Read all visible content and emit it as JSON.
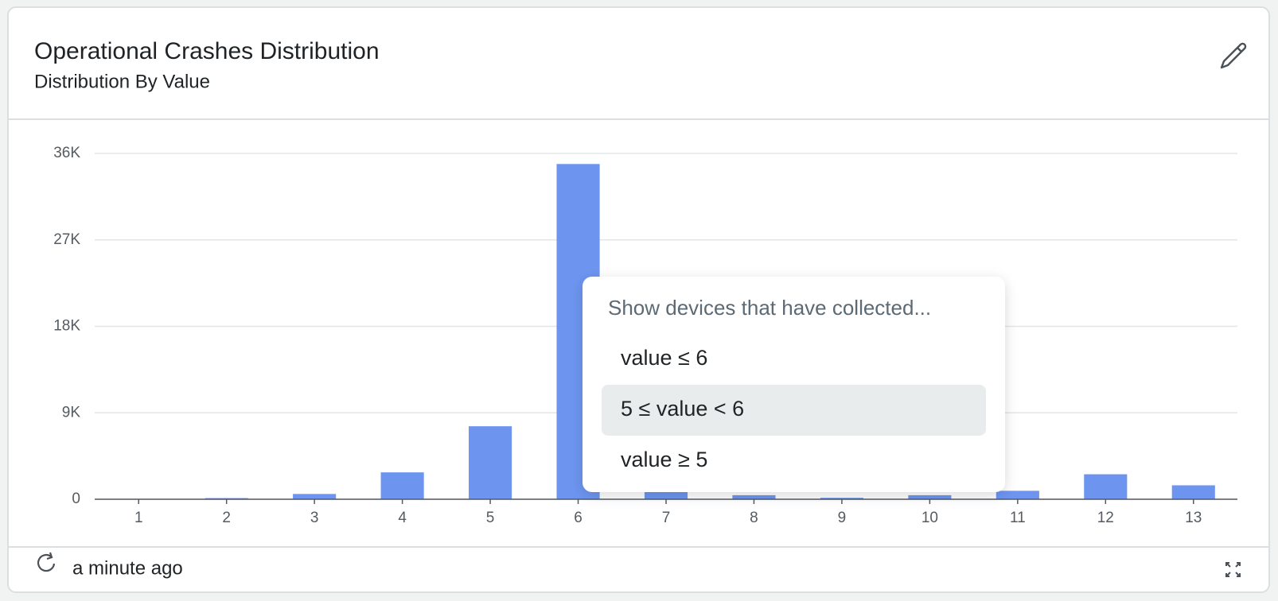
{
  "header": {
    "title": "Operational Crashes Distribution",
    "subtitle": "Distribution By Value"
  },
  "chart_data": {
    "type": "bar",
    "categories": [
      "1",
      "2",
      "3",
      "4",
      "5",
      "6",
      "7",
      "8",
      "9",
      "10",
      "11",
      "12",
      "13"
    ],
    "values": [
      20,
      120,
      550,
      2800,
      7600,
      34900,
      900,
      420,
      150,
      420,
      880,
      2600,
      1450
    ],
    "color": "#6d95f0",
    "ylim": [
      0,
      36000
    ],
    "yticks": [
      0,
      {
        "value": 9000,
        "label": "9K"
      },
      {
        "value": 18000,
        "label": "18K"
      },
      {
        "value": 27000,
        "label": "27K"
      },
      {
        "value": 36000,
        "label": "36K"
      }
    ],
    "grid": true
  },
  "popup": {
    "title": "Show devices that have collected...",
    "options": [
      "value ≤ 6",
      "5 ≤ value < 6",
      "value ≥ 5"
    ]
  },
  "footer": {
    "updated": "a minute ago"
  }
}
